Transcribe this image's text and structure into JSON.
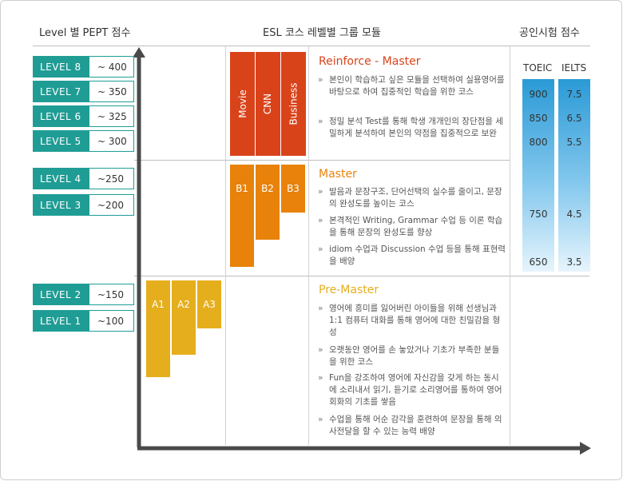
{
  "headers": {
    "levels": "Level 별 PEPT 점수",
    "modules": "ESL 코스 레벨별 그룹 모듈",
    "tests": "공인시험 점수"
  },
  "levels": [
    {
      "name": "LEVEL  8",
      "score": "~ 400"
    },
    {
      "name": "LEVEL  7",
      "score": "~ 350"
    },
    {
      "name": "LEVEL  6",
      "score": "~ 325"
    },
    {
      "name": "LEVEL  5",
      "score": "~ 300"
    },
    {
      "name": "LEVEL  4",
      "score": "~250"
    },
    {
      "name": "LEVEL  3",
      "score": "~200"
    },
    {
      "name": "LEVEL  2",
      "score": "~150"
    },
    {
      "name": "LEVEL  1",
      "score": "~100"
    }
  ],
  "modules": {
    "reinforce": [
      "Movie",
      "CNN",
      "Business"
    ],
    "master": [
      "B1",
      "B2",
      "B3"
    ],
    "premaster": [
      "A1",
      "A2",
      "A3"
    ]
  },
  "sections": [
    {
      "title": "Reinforce - Master",
      "color": "#d9431a",
      "bullets": [
        "본인이 학습하고 싶은 모듈을 선택하여 실용영어를 바탕으로 하여 집중적인 학습을 위한 코스",
        "정밀 분석 Test를 통해 학생 개개인의 장단점을 세밀하게 분석하여 본인의 약점을 집중적으로 보완"
      ]
    },
    {
      "title": "Master",
      "color": "#e8820a",
      "bullets": [
        "발음과 문장구조, 단어선택의 실수를 줄이고, 문장의 완성도를 높이는 코스",
        "본격적인 Writing, Grammar 수업 등 이론 학습을 통해 문장의 완성도를 향상",
        "idiom 수업과  Discussion 수업 등을 통해 표현력을 배양"
      ]
    },
    {
      "title": "Pre-Master",
      "color": "#e5ae1c",
      "bullets": [
        "영어에 흥미를 잃어버린 아이들을 위해 선생님과 1:1 컴퓨터 대화를 통해 영어에 대한 친밀감을 형성",
        "오랫동안 영어를 손 놓았거나 기초가 부족한 분들을 위한 코스",
        "Fun을 강조하여 영어에 자신감을 갖게 하는 동시에 소리내서 읽기, 듣기로 소리영어를 통하여 영어회화의 기초를 쌓음",
        "수업을 통해 어순 감각을 훈련하여 문장을 통해 의사전달을 할 수 있는 능력 배양"
      ]
    }
  ],
  "bullet_marker": "»",
  "tests": {
    "toeic_label": "TOEIC",
    "ielts_label": "IELTS",
    "toeic": [
      "900",
      "850",
      "800",
      "750",
      "650"
    ],
    "ielts": [
      "7.5",
      "6.5",
      "5.5",
      "4.5",
      "3.5"
    ]
  },
  "colors": {
    "teal": "#1f9d95",
    "red": "#d9431a",
    "orange": "#e8820a",
    "yellow": "#e5ae1c",
    "blue": "#2a9ad6",
    "arrow": "#4a4a4a"
  }
}
